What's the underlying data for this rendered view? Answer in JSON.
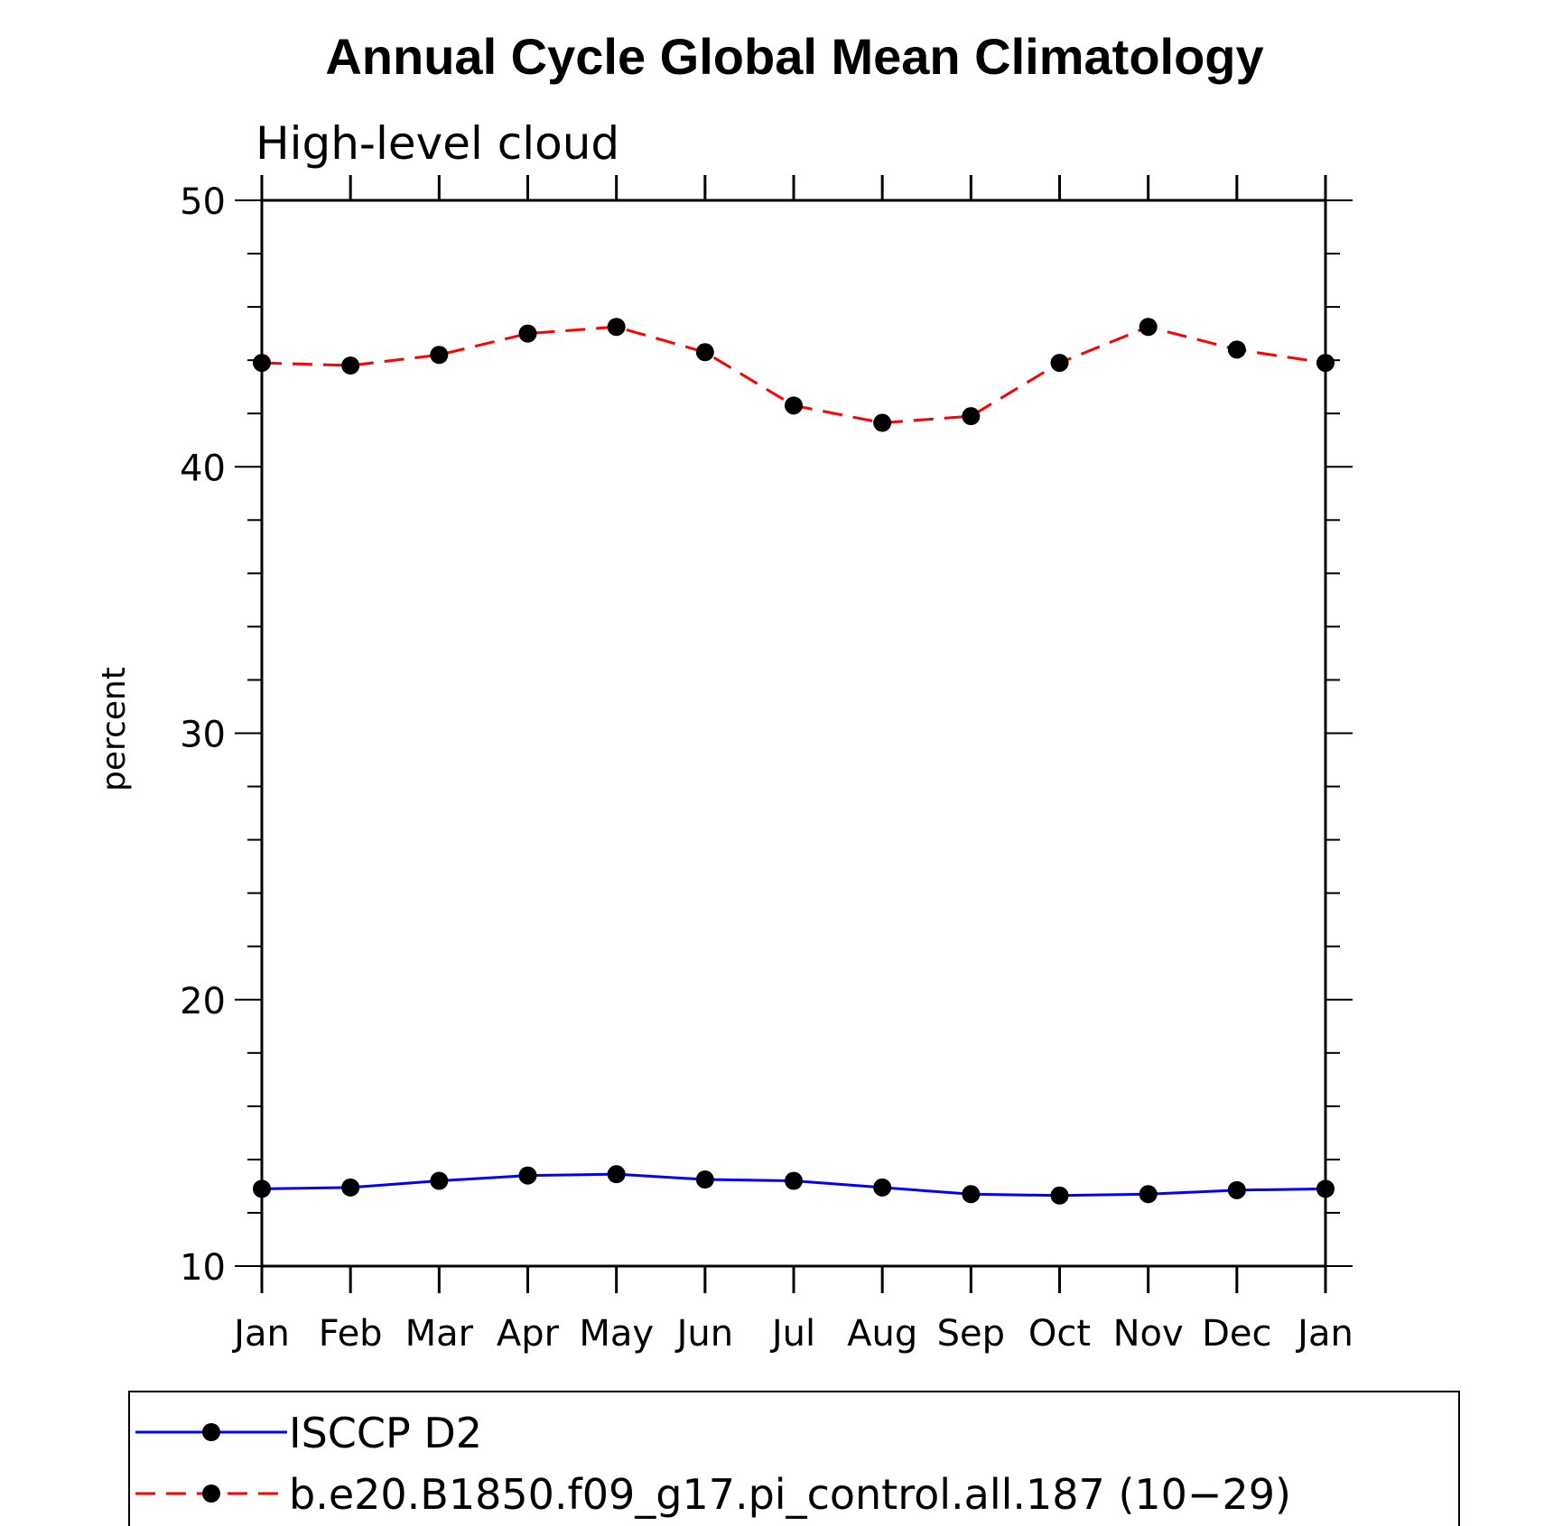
{
  "chart_data": {
    "type": "line",
    "title": "Annual Cycle Global Mean Climatology",
    "subtitle": "High-level cloud",
    "ylabel": "percent",
    "xlabel": "",
    "categories": [
      "Jan",
      "Feb",
      "Mar",
      "Apr",
      "May",
      "Jun",
      "Jul",
      "Aug",
      "Sep",
      "Oct",
      "Nov",
      "Dec",
      "Jan"
    ],
    "ylim": [
      10,
      50
    ],
    "yticks": [
      "10",
      "20",
      "30",
      "40",
      "50"
    ],
    "grid": false,
    "legend_position": "bottom",
    "series": [
      {
        "name": "ISCCP D2",
        "color": "#0000ff",
        "line_style": "solid",
        "marker": "filled-circle",
        "values": [
          12.9,
          12.95,
          13.2,
          13.4,
          13.45,
          13.25,
          13.2,
          12.95,
          12.7,
          12.65,
          12.7,
          12.85,
          12.9
        ]
      },
      {
        "name": "b.e20.B1850.f09_g17.pi_control.all.187 (10−29)",
        "color": "#ff0000",
        "line_style": "dashed",
        "marker": "filled-circle",
        "values": [
          43.9,
          43.8,
          44.2,
          45.0,
          45.25,
          44.3,
          42.3,
          41.65,
          41.9,
          43.9,
          45.25,
          44.4,
          43.9
        ]
      }
    ]
  }
}
